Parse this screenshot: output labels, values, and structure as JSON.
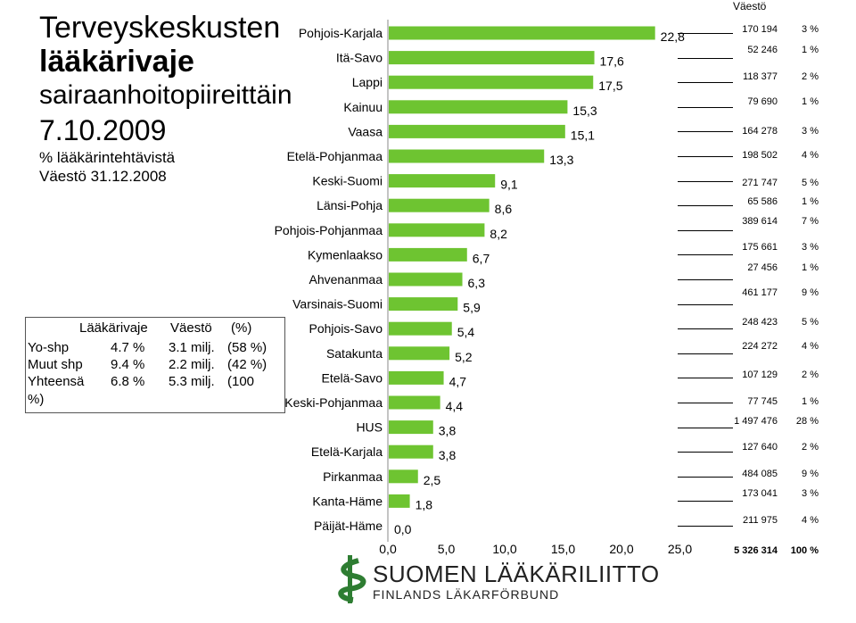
{
  "title": {
    "line1": "Terveyskeskusten",
    "line2": "lääkärivaje",
    "line3": "sairaanhoitopiireittäin",
    "line4": "7.10.2009",
    "sub1": "% lääkärintehtävistä",
    "sub2": "Väestö 31.12.2008"
  },
  "summary": {
    "headers": [
      "Lääkärivaje",
      "Väestö",
      "(%)"
    ],
    "rows": [
      {
        "label": "Yo-shp",
        "vaje": "4.7 %",
        "vaesto": "3.1 milj.",
        "pct": "(58 %)"
      },
      {
        "label": "Muut shp",
        "vaje": "9.4 %",
        "vaesto": "2.2 milj.",
        "pct": "(42 %)"
      },
      {
        "label": "Yhteensä",
        "vaje": "6.8 %",
        "vaesto": "5.3 milj.",
        "pct": "(100"
      }
    ],
    "overflow": "%)"
  },
  "population": {
    "header": "Väestö",
    "total": {
      "value": "5 326 314",
      "pct": "100 %"
    }
  },
  "logo": {
    "name": "SUOMEN LÄÄKÄRILIITTO",
    "sub": "FINLANDS LÄKARFÖRBUND",
    "icon": "serpent-staff-icon",
    "color": "#2e7d32"
  },
  "chart_data": {
    "type": "bar",
    "orientation": "horizontal",
    "categories": [
      "Pohjois-Karjala",
      "Itä-Savo",
      "Lappi",
      "Kainuu",
      "Vaasa",
      "Etelä-Pohjanmaa",
      "Keski-Suomi",
      "Länsi-Pohja",
      "Pohjois-Pohjanmaa",
      "Kymenlaakso",
      "Ahvenanmaa",
      "Varsinais-Suomi",
      "Pohjois-Savo",
      "Satakunta",
      "Etelä-Savo",
      "Keski-Pohjanmaa",
      "HUS",
      "Etelä-Karjala",
      "Pirkanmaa",
      "Kanta-Häme",
      "Päijät-Häme"
    ],
    "values": [
      22.8,
      17.6,
      17.5,
      15.3,
      15.1,
      13.3,
      9.1,
      8.6,
      8.2,
      6.7,
      6.3,
      5.9,
      5.4,
      5.2,
      4.7,
      4.4,
      3.8,
      3.8,
      2.5,
      1.8,
      0.0
    ],
    "value_labels": [
      "22,8",
      "17,6",
      "17,5",
      "15,3",
      "15,1",
      "13,3",
      "9,1",
      "8,6",
      "8,2",
      "6,7",
      "6,3",
      "5,9",
      "5,4",
      "5,2",
      "4,7",
      "4,4",
      "3,8",
      "3,8",
      "2,5",
      "1,8",
      "0,0"
    ],
    "population": [
      "170 194",
      "52 246",
      "118 377",
      "79 690",
      "164 278",
      "198 502",
      "271 747",
      "65 586",
      "389 614",
      "175 661",
      "27 456",
      "461 177",
      "248 423",
      "224 272",
      "107 129",
      "77 745",
      "1 497 476",
      "127 640",
      "484 085",
      "173 041",
      "211 975"
    ],
    "population_pct": [
      "3 %",
      "1 %",
      "2 %",
      "1 %",
      "3 %",
      "4 %",
      "5 %",
      "1 %",
      "7 %",
      "3 %",
      "1 %",
      "9 %",
      "5 %",
      "4 %",
      "2 %",
      "1 %",
      "28 %",
      "2 %",
      "9 %",
      "3 %",
      "4 %"
    ],
    "xlim": [
      0,
      25
    ],
    "x_ticks": [
      "0,0",
      "5,0",
      "10,0",
      "15,0",
      "20,0",
      "25,0"
    ],
    "bar_color": "#6ec431",
    "grid": false
  }
}
